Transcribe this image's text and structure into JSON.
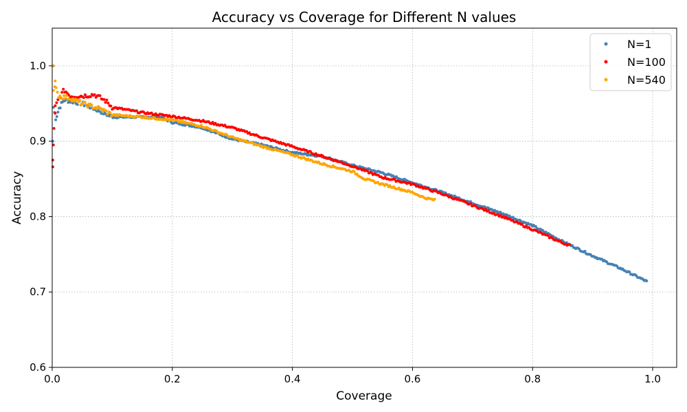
{
  "chart_data": {
    "type": "scatter",
    "title": "Accuracy vs Coverage for Different N values",
    "xlabel": "Coverage",
    "ylabel": "Accuracy",
    "xlim": [
      0.0,
      1.04
    ],
    "ylim": [
      0.6,
      1.05
    ],
    "xticks": [
      0.0,
      0.2,
      0.4,
      0.6,
      0.8,
      1.0
    ],
    "xtick_labels": [
      "0.0",
      "0.2",
      "0.4",
      "0.6",
      "0.8",
      "1.0"
    ],
    "yticks": [
      0.6,
      0.7,
      0.8,
      0.9,
      1.0
    ],
    "ytick_labels": [
      "0.6",
      "0.7",
      "0.8",
      "0.9",
      "1.0"
    ],
    "grid": true,
    "legend_position": "top-right",
    "series": [
      {
        "name": "N=1",
        "color": "#4682b4",
        "keypoints": [
          [
            0.002,
            0.945
          ],
          [
            0.006,
            0.93
          ],
          [
            0.012,
            0.945
          ],
          [
            0.02,
            0.955
          ],
          [
            0.05,
            0.95
          ],
          [
            0.08,
            0.94
          ],
          [
            0.1,
            0.932
          ],
          [
            0.15,
            0.932
          ],
          [
            0.18,
            0.932
          ],
          [
            0.2,
            0.925
          ],
          [
            0.25,
            0.918
          ],
          [
            0.3,
            0.903
          ],
          [
            0.35,
            0.895
          ],
          [
            0.4,
            0.885
          ],
          [
            0.45,
            0.88
          ],
          [
            0.5,
            0.868
          ],
          [
            0.55,
            0.858
          ],
          [
            0.6,
            0.845
          ],
          [
            0.65,
            0.832
          ],
          [
            0.7,
            0.818
          ],
          [
            0.75,
            0.804
          ],
          [
            0.8,
            0.788
          ],
          [
            0.85,
            0.767
          ],
          [
            0.9,
            0.748
          ],
          [
            0.95,
            0.73
          ],
          [
            0.99,
            0.714
          ]
        ],
        "n_points": 520,
        "outliers": [
          [
            0.001,
            0.9
          ],
          [
            0.002,
            1.0
          ]
        ]
      },
      {
        "name": "N=100",
        "color": "#ff0000",
        "keypoints": [
          [
            0.005,
            0.945
          ],
          [
            0.01,
            0.955
          ],
          [
            0.02,
            0.968
          ],
          [
            0.03,
            0.96
          ],
          [
            0.05,
            0.96
          ],
          [
            0.07,
            0.962
          ],
          [
            0.09,
            0.953
          ],
          [
            0.1,
            0.945
          ],
          [
            0.15,
            0.938
          ],
          [
            0.2,
            0.933
          ],
          [
            0.25,
            0.927
          ],
          [
            0.3,
            0.918
          ],
          [
            0.35,
            0.905
          ],
          [
            0.4,
            0.893
          ],
          [
            0.45,
            0.88
          ],
          [
            0.5,
            0.867
          ],
          [
            0.55,
            0.852
          ],
          [
            0.6,
            0.843
          ],
          [
            0.65,
            0.83
          ],
          [
            0.7,
            0.815
          ],
          [
            0.75,
            0.8
          ],
          [
            0.8,
            0.783
          ],
          [
            0.85,
            0.765
          ],
          [
            0.862,
            0.762
          ]
        ],
        "n_points": 380,
        "outliers": [
          [
            0.001,
            0.866
          ],
          [
            0.001,
            0.875
          ],
          [
            0.002,
            0.895
          ],
          [
            0.003,
            0.917
          ],
          [
            0.005,
            0.937
          ]
        ]
      },
      {
        "name": "N=540",
        "color": "#ffa500",
        "keypoints": [
          [
            0.002,
            0.965
          ],
          [
            0.006,
            0.975
          ],
          [
            0.01,
            0.96
          ],
          [
            0.03,
            0.957
          ],
          [
            0.05,
            0.95
          ],
          [
            0.08,
            0.943
          ],
          [
            0.1,
            0.935
          ],
          [
            0.15,
            0.932
          ],
          [
            0.2,
            0.928
          ],
          [
            0.25,
            0.92
          ],
          [
            0.3,
            0.905
          ],
          [
            0.35,
            0.893
          ],
          [
            0.4,
            0.882
          ],
          [
            0.45,
            0.87
          ],
          [
            0.5,
            0.86
          ],
          [
            0.52,
            0.85
          ],
          [
            0.55,
            0.843
          ],
          [
            0.6,
            0.832
          ],
          [
            0.62,
            0.825
          ],
          [
            0.637,
            0.822
          ]
        ],
        "n_points": 290,
        "outliers": [
          [
            0.002,
            1.0
          ],
          [
            0.005,
            0.98
          ]
        ]
      }
    ]
  }
}
